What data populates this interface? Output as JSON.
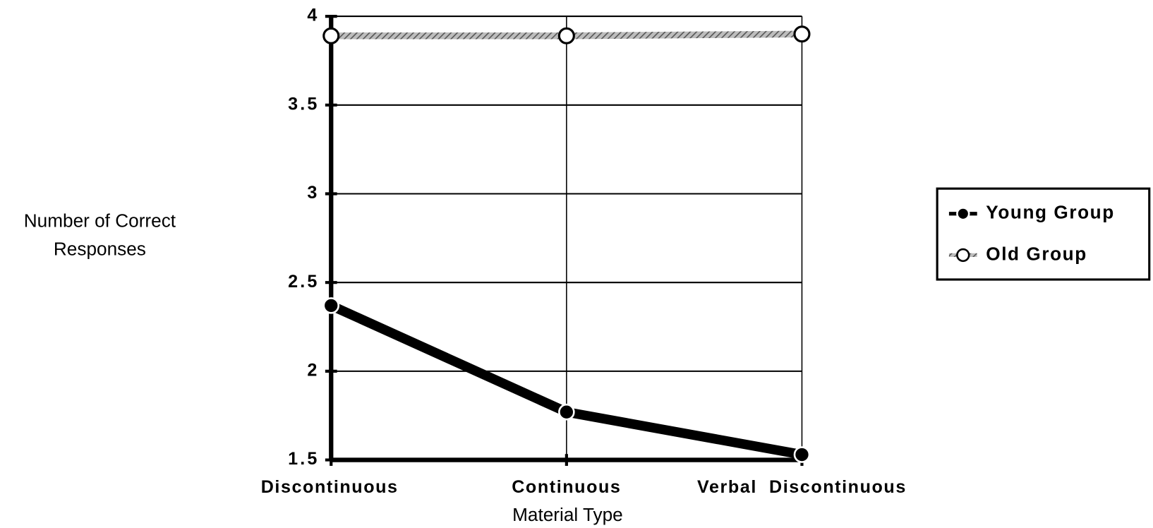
{
  "chart_data": {
    "type": "line",
    "xlabel": "Material Type",
    "ylabel": "Number of Correct Responses",
    "categories": [
      "Discontinuous",
      "Continuous",
      "Verbal  Discontinuous"
    ],
    "series": [
      {
        "name": "Young Group",
        "color": "#000000",
        "values": [
          2.37,
          1.77,
          1.53
        ]
      },
      {
        "name": "Old Group",
        "color": "#8a8a8a",
        "values": [
          3.89,
          3.89,
          3.9
        ]
      }
    ],
    "ylim": [
      1.5,
      4
    ],
    "yticks": [
      1.5,
      2,
      2.5,
      3,
      3.5,
      4
    ],
    "grid": true,
    "legend": "right"
  }
}
